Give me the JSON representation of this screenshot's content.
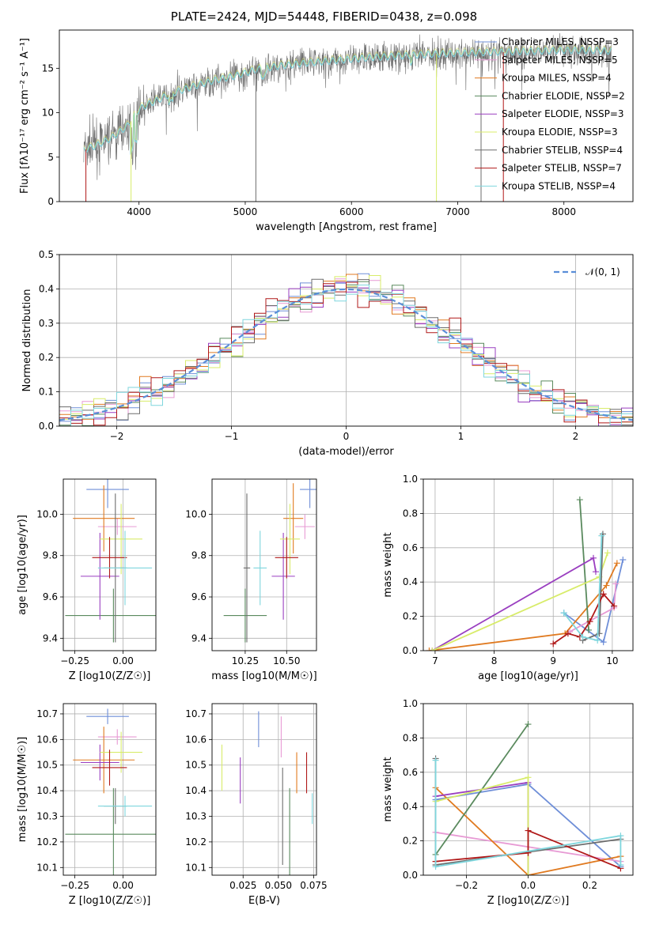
{
  "figure": {
    "title": "PLATE=2424, MJD=54448, FIBERID=0438, z=0.098"
  },
  "colors": {
    "chabrier_miles": "#6f8fd8",
    "salpeter_miles": "#e79ad4",
    "kroupa_miles": "#e07a20",
    "chabrier_elodie": "#5a8a5e",
    "salpeter_elodie": "#9a3fc0",
    "kroupa_elodie": "#d8ec6a",
    "chabrier_stelib": "#6d6d6d",
    "salpeter_stelib": "#b01818",
    "kroupa_stelib": "#7fd6dd",
    "dashed_normal": "#5a8ed8",
    "grid": "#b0b0b0"
  },
  "chart_data": [
    {
      "id": "spectrum",
      "type": "line",
      "xlabel": "wavelength [Angstrom, rest frame]",
      "ylabel": "Flux [fλ10⁻¹⁷ erg cm⁻² s⁻¹ A⁻¹]",
      "xlim": [
        3250,
        8650
      ],
      "ylim": [
        0,
        19.3
      ],
      "xticks": [
        4000,
        5000,
        6000,
        7000,
        8000
      ],
      "yticks": [
        0,
        5,
        10,
        15
      ],
      "grid": false,
      "legend_position": "top-right",
      "legend": [
        "Chabrier MILES, NSSP=3",
        "Salpeter MILES, NSSP=5",
        "Kroupa MILES, NSSP=4",
        "Chabrier ELODIE, NSSP=2",
        "Salpeter ELODIE, NSSP=3",
        "Kroupa ELODIE, NSSP=3",
        "Chabrier STELIB, NSSP=4",
        "Salpeter STELIB, NSSP=7",
        "Kroupa STELIB, NSSP=4"
      ],
      "continuum": {
        "x": [
          3480,
          3600,
          3750,
          3900,
          4000,
          4100,
          4300,
          4500,
          4700,
          4900,
          5100,
          5300,
          5600,
          5900,
          6200,
          6500,
          6800,
          7100,
          7400,
          7700,
          8000,
          8300,
          8450
        ],
        "y": [
          5.8,
          6.3,
          7.2,
          8.6,
          10.4,
          11.0,
          12.1,
          12.9,
          13.6,
          14.1,
          14.8,
          15.2,
          15.6,
          15.9,
          16.2,
          16.4,
          16.6,
          16.7,
          16.8,
          16.9,
          17.0,
          17.0,
          16.9
        ]
      }
    },
    {
      "id": "residuals",
      "type": "line",
      "xlabel": "(data-model)/error",
      "ylabel": "Normed distribution",
      "xlim": [
        -2.5,
        2.5
      ],
      "ylim": [
        0,
        0.5
      ],
      "xticks": [
        -2,
        -1,
        0,
        1,
        2
      ],
      "yticks": [
        0.0,
        0.1,
        0.2,
        0.3,
        0.4,
        0.5
      ],
      "grid": true,
      "legend_position": "top-right",
      "legend": [
        "𝒩(0, 1)"
      ],
      "bin_width": 0.1
    },
    {
      "id": "age_vs_Z",
      "type": "scatter",
      "xlabel": "Z [log10(Z/Z☉)]",
      "ylabel": "age  [log10(age/yr)]",
      "xlim": [
        -0.31,
        0.17
      ],
      "ylim": [
        9.34,
        10.17
      ],
      "xticks": [
        -0.25,
        0.0
      ],
      "yticks": [
        9.4,
        9.6,
        9.8,
        10.0
      ],
      "grid": true,
      "points": [
        {
          "s": "chabrier_miles",
          "x": -0.08,
          "xe": 0.11,
          "y": 10.12,
          "ye": 0.09
        },
        {
          "s": "salpeter_miles",
          "x": -0.03,
          "xe": 0.1,
          "y": 9.94,
          "ye": 0.04
        },
        {
          "s": "kroupa_miles",
          "x": -0.1,
          "xe": 0.16,
          "y": 9.98,
          "ye": 0.16
        },
        {
          "s": "chabrier_elodie",
          "x": -0.05,
          "xe": 0.25,
          "y": 9.51,
          "ye": 0.13
        },
        {
          "s": "salpeter_elodie",
          "x": -0.12,
          "xe": 0.1,
          "y": 9.7,
          "ye": 0.21
        },
        {
          "s": "kroupa_elodie",
          "x": -0.01,
          "xe": 0.11,
          "y": 9.88,
          "ye": 0.17
        },
        {
          "s": "chabrier_stelib",
          "x": -0.04,
          "xe": 0.06,
          "y": 9.74,
          "ye": 0.36
        },
        {
          "s": "salpeter_stelib",
          "x": -0.07,
          "xe": 0.09,
          "y": 9.79,
          "ye": 0.1
        },
        {
          "s": "kroupa_stelib",
          "x": 0.01,
          "xe": 0.14,
          "y": 9.74,
          "ye": 0.18
        }
      ]
    },
    {
      "id": "age_vs_mass",
      "type": "scatter",
      "xlabel": "mass [log10(M/M☉)]",
      "ylabel": "",
      "xlim": [
        10.05,
        10.68
      ],
      "ylim": [
        9.34,
        10.17
      ],
      "xticks": [
        10.25,
        10.5
      ],
      "yticks": [
        9.4,
        9.6,
        9.8,
        10.0
      ],
      "grid": true,
      "points": [
        {
          "s": "chabrier_miles",
          "x": 10.64,
          "xe": 0.06,
          "y": 10.12,
          "ye": 0.09
        },
        {
          "s": "salpeter_miles",
          "x": 10.61,
          "xe": 0.06,
          "y": 9.94,
          "ye": 0.06
        },
        {
          "s": "kroupa_miles",
          "x": 10.54,
          "xe": 0.06,
          "y": 9.98,
          "ye": 0.17
        },
        {
          "s": "chabrier_elodie",
          "x": 10.25,
          "xe": 0.13,
          "y": 9.51,
          "ye": 0.13
        },
        {
          "s": "salpeter_elodie",
          "x": 10.48,
          "xe": 0.07,
          "y": 9.7,
          "ye": 0.21
        },
        {
          "s": "kroupa_elodie",
          "x": 10.52,
          "xe": 0.06,
          "y": 9.88,
          "ye": 0.17
        },
        {
          "s": "chabrier_stelib",
          "x": 10.26,
          "xe": 0.02,
          "y": 9.74,
          "ye": 0.36
        },
        {
          "s": "salpeter_stelib",
          "x": 10.5,
          "xe": 0.07,
          "y": 9.79,
          "ye": 0.1
        },
        {
          "s": "kroupa_stelib",
          "x": 10.34,
          "xe": 0.04,
          "y": 9.74,
          "ye": 0.18
        }
      ]
    },
    {
      "id": "weight_vs_age",
      "type": "line",
      "xlabel": "age  [log10(age/yr)]",
      "ylabel": "mass weight",
      "xlim": [
        6.8,
        10.35
      ],
      "ylim": [
        0,
        1.0
      ],
      "xticks": [
        7,
        8,
        9,
        10
      ],
      "yticks": [
        0.0,
        0.2,
        0.4,
        0.6,
        0.8,
        1.0
      ],
      "grid": true,
      "series": [
        {
          "s": "chabrier_miles",
          "x": [
            9.18,
            9.85,
            10.18
          ],
          "y": [
            0.22,
            0.05,
            0.53
          ]
        },
        {
          "s": "salpeter_miles",
          "x": [
            9.28,
            10.03,
            10.06
          ],
          "y": [
            0.11,
            0.25,
            0.39
          ]
        },
        {
          "s": "kroupa_miles",
          "x": [
            6.9,
            9.2,
            9.9,
            10.08
          ],
          "y": [
            0.0,
            0.1,
            0.38,
            0.51
          ]
        },
        {
          "s": "chabrier_elodie",
          "x": [
            9.45,
            9.6
          ],
          "y": [
            0.88,
            0.12
          ]
        },
        {
          "s": "salpeter_elodie",
          "x": [
            6.95,
            9.68,
            9.72
          ],
          "y": [
            0.0,
            0.54,
            0.46
          ]
        },
        {
          "s": "kroupa_elodie",
          "x": [
            6.95,
            9.78,
            9.92
          ],
          "y": [
            0.0,
            0.43,
            0.57
          ]
        },
        {
          "s": "chabrier_stelib",
          "x": [
            9.5,
            9.78,
            9.84
          ],
          "y": [
            0.06,
            0.1,
            0.68
          ]
        },
        {
          "s": "salpeter_stelib",
          "x": [
            9.0,
            9.25,
            9.45,
            9.62,
            9.85,
            10.03
          ],
          "y": [
            0.04,
            0.1,
            0.08,
            0.17,
            0.33,
            0.26
          ]
        },
        {
          "s": "kroupa_stelib",
          "x": [
            9.18,
            9.5,
            9.75,
            9.82
          ],
          "y": [
            0.22,
            0.08,
            0.06,
            0.67
          ]
        }
      ]
    },
    {
      "id": "mass_vs_Z",
      "type": "scatter",
      "xlabel": "Z [log10(Z/Z☉)]",
      "ylabel": "mass [log10(M/M☉)]",
      "xlim": [
        -0.31,
        0.17
      ],
      "ylim": [
        10.07,
        10.74
      ],
      "xticks": [
        -0.25,
        0.0
      ],
      "yticks": [
        10.1,
        10.2,
        10.3,
        10.4,
        10.5,
        10.6,
        10.7
      ],
      "grid": true,
      "points": [
        {
          "s": "chabrier_miles",
          "x": -0.08,
          "xe": 0.11,
          "y": 10.69,
          "ye": 0.03
        },
        {
          "s": "salpeter_miles",
          "x": -0.03,
          "xe": 0.1,
          "y": 10.61,
          "ye": 0.03
        },
        {
          "s": "kroupa_miles",
          "x": -0.1,
          "xe": 0.16,
          "y": 10.52,
          "ye": 0.13
        },
        {
          "s": "chabrier_elodie",
          "x": -0.05,
          "xe": 0.25,
          "y": 10.23,
          "ye": 0.18
        },
        {
          "s": "salpeter_elodie",
          "x": -0.12,
          "xe": 0.1,
          "y": 10.51,
          "ye": 0.07
        },
        {
          "s": "kroupa_elodie",
          "x": -0.01,
          "xe": 0.11,
          "y": 10.55,
          "ye": 0.08
        },
        {
          "s": "chabrier_stelib",
          "x": -0.04,
          "xe": 0.06,
          "y": 10.34,
          "ye": 0.07
        },
        {
          "s": "salpeter_stelib",
          "x": -0.07,
          "xe": 0.09,
          "y": 10.49,
          "ye": 0.07
        },
        {
          "s": "kroupa_stelib",
          "x": 0.01,
          "xe": 0.14,
          "y": 10.34,
          "ye": 0.04
        }
      ]
    },
    {
      "id": "mass_vs_ebv",
      "type": "scatter",
      "xlabel": "E(B-V)",
      "ylabel": "",
      "xlim": [
        0.003,
        0.077
      ],
      "ylim": [
        10.07,
        10.74
      ],
      "xticks": [
        0.025,
        0.05,
        0.075
      ],
      "yticks": [
        10.1,
        10.2,
        10.3,
        10.4,
        10.5,
        10.6,
        10.7
      ],
      "grid": true,
      "points": [
        {
          "s": "chabrier_miles",
          "x": 0.036,
          "y": 10.64,
          "ye": 0.07
        },
        {
          "s": "salpeter_miles",
          "x": 0.052,
          "y": 10.61,
          "ye": 0.08
        },
        {
          "s": "kroupa_miles",
          "x": 0.063,
          "y": 10.47,
          "ye": 0.08
        },
        {
          "s": "chabrier_elodie",
          "x": 0.058,
          "y": 10.24,
          "ye": 0.17
        },
        {
          "s": "salpeter_elodie",
          "x": 0.023,
          "y": 10.44,
          "ye": 0.09
        },
        {
          "s": "kroupa_elodie",
          "x": 0.01,
          "y": 10.49,
          "ye": 0.09
        },
        {
          "s": "chabrier_stelib",
          "x": 0.053,
          "y": 10.3,
          "ye": 0.19
        },
        {
          "s": "salpeter_stelib",
          "x": 0.07,
          "y": 10.47,
          "ye": 0.08
        },
        {
          "s": "kroupa_stelib",
          "x": 0.074,
          "y": 10.33,
          "ye": 0.06
        }
      ]
    },
    {
      "id": "weight_vs_Z",
      "type": "line",
      "xlabel": "Z [log10(Z/Z☉)]",
      "ylabel": "mass weight",
      "xlim": [
        -0.34,
        0.34
      ],
      "ylim": [
        0,
        1.0
      ],
      "xticks": [
        -0.2,
        0.0,
        0.2
      ],
      "yticks": [
        0.0,
        0.2,
        0.4,
        0.6,
        0.8,
        1.0
      ],
      "grid": true,
      "series": [
        {
          "s": "chabrier_miles",
          "x": [
            -0.3,
            0.0,
            0.3
          ],
          "y": [
            0.44,
            0.53,
            0.05
          ]
        },
        {
          "s": "salpeter_miles",
          "x": [
            -0.3,
            0.3
          ],
          "y": [
            0.25,
            0.08
          ]
        },
        {
          "s": "kroupa_miles",
          "x": [
            -0.3,
            0.0,
            0.3
          ],
          "y": [
            0.51,
            0.0,
            0.11
          ]
        },
        {
          "s": "chabrier_elodie",
          "x": [
            -0.3,
            0.0
          ],
          "y": [
            0.12,
            0.88
          ]
        },
        {
          "s": "salpeter_elodie",
          "x": [
            -0.3,
            0.0,
            0.0
          ],
          "y": [
            0.46,
            0.54,
            0.0
          ]
        },
        {
          "s": "kroupa_elodie",
          "x": [
            -0.3,
            0.0,
            0.0
          ],
          "y": [
            0.43,
            0.57,
            0.0
          ]
        },
        {
          "s": "chabrier_stelib",
          "x": [
            -0.3,
            -0.3,
            0.3
          ],
          "y": [
            0.68,
            0.06,
            0.21
          ]
        },
        {
          "s": "salpeter_stelib",
          "x": [
            -0.3,
            0.0,
            0.0,
            0.3
          ],
          "y": [
            0.08,
            0.13,
            0.26,
            0.04
          ]
        },
        {
          "s": "kroupa_stelib",
          "x": [
            -0.3,
            -0.3,
            0.3,
            0.3
          ],
          "y": [
            0.67,
            0.05,
            0.23,
            0.06
          ]
        }
      ]
    }
  ]
}
